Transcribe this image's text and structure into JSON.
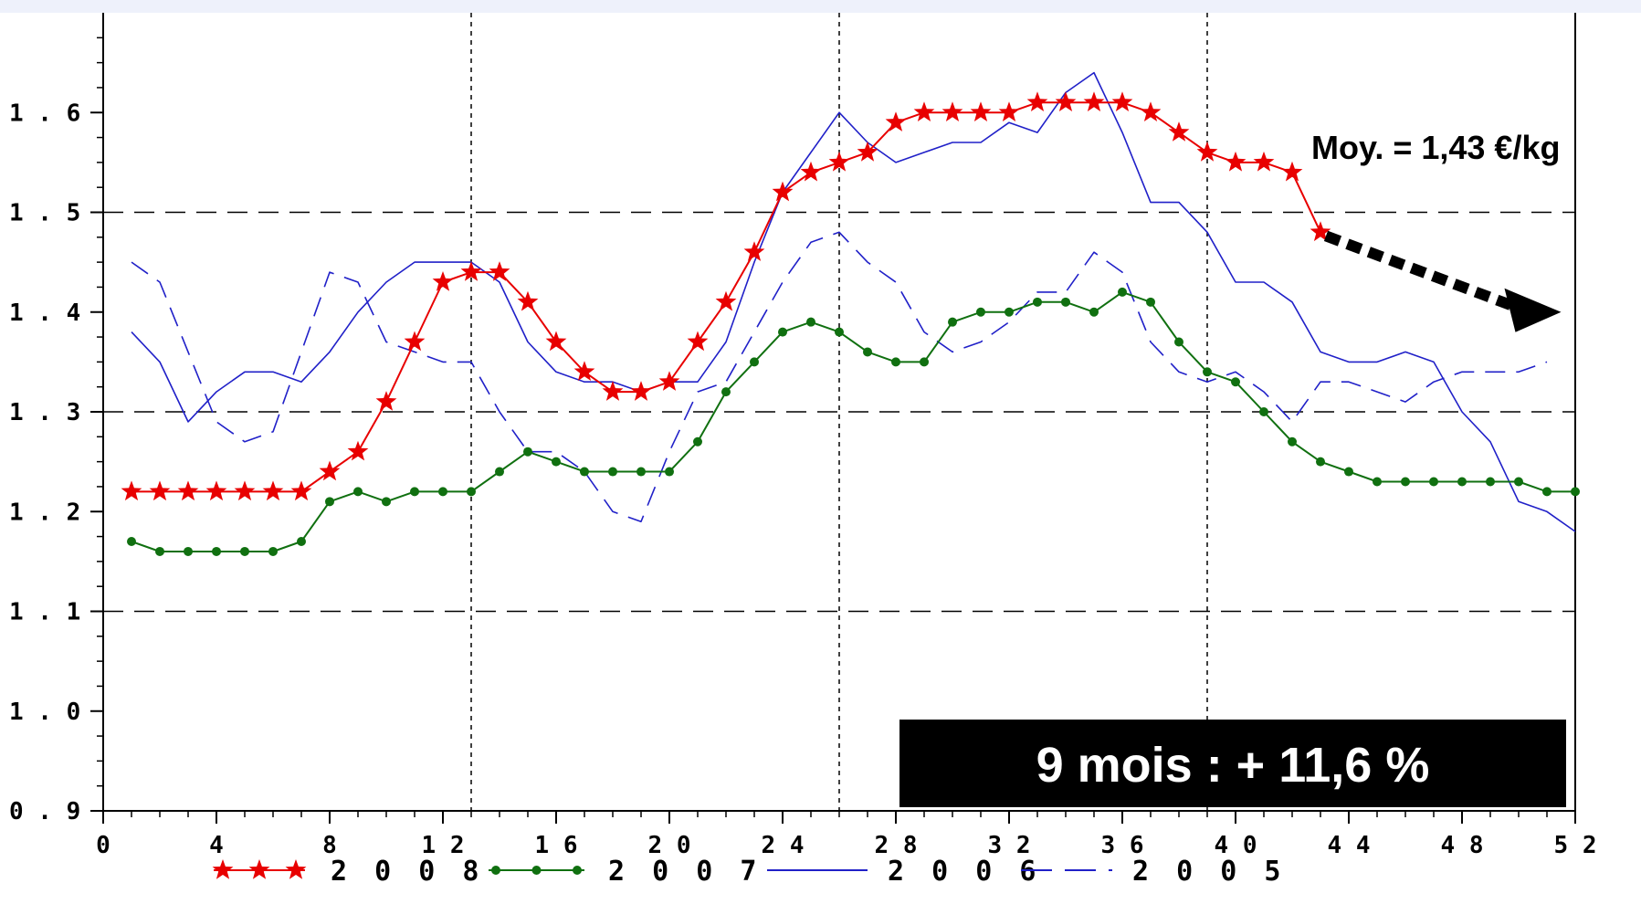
{
  "chart_data": {
    "type": "line",
    "title": "",
    "xlabel": "",
    "ylabel": "",
    "xlim": [
      0,
      52
    ],
    "ylim": [
      0.9,
      1.7
    ],
    "x_ticks": [
      0,
      4,
      8,
      12,
      16,
      20,
      24,
      28,
      32,
      36,
      40,
      44,
      48,
      52
    ],
    "x_tick_labels": [
      "0",
      "4",
      "8",
      "1 2",
      "1 6",
      "2 0",
      "2 4",
      "2 8",
      "3 2",
      "3 6",
      "4 0",
      "4 4",
      "4 8",
      "5 2"
    ],
    "y_ticks": [
      0.9,
      1.0,
      1.1,
      1.2,
      1.3,
      1.4,
      1.5,
      1.6
    ],
    "y_tick_labels": [
      "0 . 9",
      "1 . 0",
      "1 . 1",
      "1 . 2",
      "1 . 3",
      "1 . 4",
      "1 . 5",
      "1 . 6"
    ],
    "grid": {
      "horizontal": [
        0.9,
        1.1,
        1.3,
        1.5
      ],
      "vertical": [
        13,
        26,
        39,
        52
      ],
      "style": "dashed"
    },
    "legend_position": "bottom",
    "series": [
      {
        "name": "2 0 0 8",
        "color": "#e80000",
        "marker": "star",
        "line": "solid",
        "x": [
          1,
          2,
          3,
          4,
          5,
          6,
          7,
          8,
          9,
          10,
          11,
          12,
          13,
          14,
          15,
          16,
          17,
          18,
          19,
          20,
          21,
          22,
          23,
          24,
          25,
          26,
          27,
          28,
          29,
          30,
          31,
          32,
          33,
          34,
          35,
          36,
          37,
          38,
          39,
          40,
          41,
          42,
          43
        ],
        "y": [
          1.22,
          1.22,
          1.22,
          1.22,
          1.22,
          1.22,
          1.22,
          1.24,
          1.26,
          1.31,
          1.37,
          1.43,
          1.44,
          1.44,
          1.41,
          1.37,
          1.34,
          1.32,
          1.32,
          1.33,
          1.37,
          1.41,
          1.46,
          1.52,
          1.54,
          1.55,
          1.56,
          1.59,
          1.6,
          1.6,
          1.6,
          1.6,
          1.61,
          1.61,
          1.61,
          1.61,
          1.6,
          1.58,
          1.56,
          1.55,
          1.55,
          1.54,
          1.48
        ]
      },
      {
        "name": "2 0 0 7",
        "color": "#107010",
        "marker": "dot",
        "line": "solid",
        "x": [
          1,
          2,
          3,
          4,
          5,
          6,
          7,
          8,
          9,
          10,
          11,
          12,
          13,
          14,
          15,
          16,
          17,
          18,
          19,
          20,
          21,
          22,
          23,
          24,
          25,
          26,
          27,
          28,
          29,
          30,
          31,
          32,
          33,
          34,
          35,
          36,
          37,
          38,
          39,
          40,
          41,
          42,
          43,
          44,
          45,
          46,
          47,
          48,
          49,
          50,
          51,
          52
        ],
        "y": [
          1.17,
          1.16,
          1.16,
          1.16,
          1.16,
          1.16,
          1.17,
          1.21,
          1.22,
          1.21,
          1.22,
          1.22,
          1.22,
          1.24,
          1.26,
          1.25,
          1.24,
          1.24,
          1.24,
          1.24,
          1.27,
          1.32,
          1.35,
          1.38,
          1.39,
          1.38,
          1.36,
          1.35,
          1.35,
          1.39,
          1.4,
          1.4,
          1.41,
          1.41,
          1.4,
          1.42,
          1.41,
          1.37,
          1.34,
          1.33,
          1.3,
          1.27,
          1.25,
          1.24,
          1.23,
          1.23,
          1.23,
          1.23,
          1.23,
          1.23,
          1.22,
          1.22
        ]
      },
      {
        "name": "2 0 0 6",
        "color": "#2020c8",
        "marker": "none",
        "line": "solid",
        "x": [
          1,
          2,
          3,
          4,
          5,
          6,
          7,
          8,
          9,
          10,
          11,
          12,
          13,
          14,
          15,
          16,
          17,
          18,
          19,
          20,
          21,
          22,
          23,
          24,
          25,
          26,
          27,
          28,
          29,
          30,
          31,
          32,
          33,
          34,
          35,
          36,
          37,
          38,
          39,
          40,
          41,
          42,
          43,
          44,
          45,
          46,
          47,
          48,
          49,
          50,
          51,
          52
        ],
        "y": [
          1.38,
          1.35,
          1.29,
          1.32,
          1.34,
          1.34,
          1.33,
          1.36,
          1.4,
          1.43,
          1.45,
          1.45,
          1.45,
          1.43,
          1.37,
          1.34,
          1.33,
          1.33,
          1.32,
          1.33,
          1.33,
          1.37,
          1.45,
          1.52,
          1.56,
          1.6,
          1.57,
          1.55,
          1.56,
          1.57,
          1.57,
          1.59,
          1.58,
          1.62,
          1.64,
          1.58,
          1.51,
          1.51,
          1.48,
          1.43,
          1.43,
          1.41,
          1.36,
          1.35,
          1.35,
          1.36,
          1.35,
          1.3,
          1.27,
          1.21,
          1.2,
          1.18
        ]
      },
      {
        "name": "2 0 0 5",
        "color": "#2020c8",
        "marker": "none",
        "line": "dashed",
        "x": [
          1,
          2,
          3,
          4,
          5,
          6,
          7,
          8,
          9,
          10,
          11,
          12,
          13,
          14,
          15,
          16,
          17,
          18,
          19,
          20,
          21,
          22,
          23,
          24,
          25,
          26,
          27,
          28,
          29,
          30,
          31,
          32,
          33,
          34,
          35,
          36,
          37,
          38,
          39,
          40,
          41,
          42,
          43,
          44,
          45,
          46,
          47,
          48,
          49,
          50,
          51
        ],
        "y": [
          1.45,
          1.43,
          1.36,
          1.29,
          1.27,
          1.28,
          1.36,
          1.44,
          1.43,
          1.37,
          1.36,
          1.35,
          1.35,
          1.3,
          1.26,
          1.26,
          1.24,
          1.2,
          1.19,
          1.26,
          1.32,
          1.33,
          1.38,
          1.43,
          1.47,
          1.48,
          1.45,
          1.43,
          1.38,
          1.36,
          1.37,
          1.39,
          1.42,
          1.42,
          1.46,
          1.44,
          1.37,
          1.34,
          1.33,
          1.34,
          1.32,
          1.29,
          1.33,
          1.33,
          1.32,
          1.31,
          1.33,
          1.34,
          1.34,
          1.34,
          1.35
        ]
      }
    ],
    "annotations": {
      "average_label": "Moy. = 1,43 €/kg",
      "banner_text": "9 mois : + 11,6 %",
      "arrow": {
        "from": [
          43.0,
          1.48
        ],
        "to": [
          51.5,
          1.4
        ]
      }
    }
  }
}
